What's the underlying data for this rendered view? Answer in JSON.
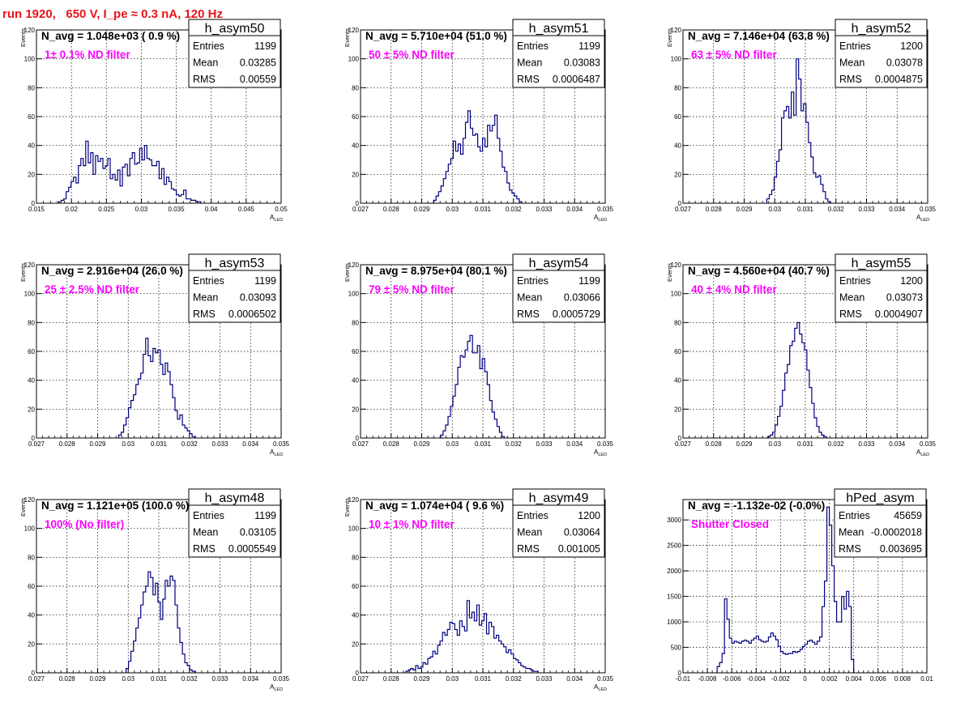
{
  "page": {
    "title": "run 1920,   650 V, I_pe ≈ 0.3 nA, 120 Hz"
  },
  "colors": {
    "title": "#e8141a",
    "annotation": "#ff00ff",
    "histogram": "#000080",
    "axis": "#000000",
    "grid": "#000000"
  },
  "chart_data": [
    {
      "type": "bar",
      "name": "h_asym50",
      "navg": "N_avg = 1.048e+03 ( 0.9 %)",
      "annotation": "1± 0.1% ND filter",
      "stats": {
        "entries": "1199",
        "mean": "0.03285",
        "rms": "0.00559"
      },
      "xlabel": "A_LED",
      "ylabel": "Events",
      "xlim": [
        0.015,
        0.05
      ],
      "ylim": [
        0,
        120
      ],
      "xticks": [
        "0.015",
        "0.02",
        "0.025",
        "0.03",
        "0.035",
        "0.04",
        "0.045",
        "0.05"
      ],
      "yticks": [
        "0",
        "20",
        "40",
        "60",
        "80",
        "100",
        "120"
      ],
      "bin_width": 0.00035,
      "values": [
        1,
        2,
        3,
        8,
        11,
        15,
        18,
        14,
        26,
        31,
        26,
        43,
        28,
        35,
        20,
        33,
        29,
        31,
        24,
        26,
        31,
        17,
        20,
        16,
        23,
        12,
        25,
        27,
        19,
        31,
        35,
        27,
        28,
        38,
        30,
        40,
        31,
        30,
        26,
        26,
        29,
        17,
        24,
        13,
        18,
        15,
        10,
        9,
        6,
        5,
        6,
        9,
        3,
        3,
        2,
        2,
        1,
        1
      ]
    },
    {
      "type": "bar",
      "name": "h_asym51",
      "navg": "N_avg = 5.710e+04 (51.0 %)",
      "annotation": "50 ± 5% ND filter",
      "stats": {
        "entries": "1199",
        "mean": "0.03083",
        "rms": "0.0006487"
      },
      "xlabel": "A_LED",
      "ylabel": "Events",
      "xlim": [
        0.027,
        0.035
      ],
      "ylim": [
        0,
        120
      ],
      "xticks": [
        "0.027",
        "0.028",
        "0.029",
        "0.03",
        "0.031",
        "0.032",
        "0.033",
        "0.034",
        "0.035"
      ],
      "yticks": [
        "0",
        "20",
        "40",
        "60",
        "80",
        "100",
        "120"
      ],
      "bin_width": 8e-05,
      "values": [
        2,
        5,
        8,
        12,
        17,
        22,
        27,
        31,
        43,
        36,
        41,
        34,
        45,
        56,
        64,
        52,
        47,
        48,
        39,
        36,
        45,
        39,
        54,
        50,
        54,
        61,
        45,
        36,
        25,
        22,
        14,
        9,
        7,
        5,
        3,
        1
      ]
    },
    {
      "type": "bar",
      "name": "h_asym52",
      "navg": "N_avg = 7.146e+04 (63.8 %)",
      "annotation": "63 ± 5% ND filter",
      "stats": {
        "entries": "1200",
        "mean": "0.03078",
        "rms": "0.0004875"
      },
      "xlabel": "A_LED",
      "ylabel": "Events",
      "xlim": [
        0.027,
        0.035
      ],
      "ylim": [
        0,
        120
      ],
      "xticks": [
        "0.027",
        "0.028",
        "0.029",
        "0.03",
        "0.031",
        "0.032",
        "0.033",
        "0.034",
        "0.035"
      ],
      "yticks": [
        "0",
        "20",
        "40",
        "60",
        "80",
        "100",
        "120"
      ],
      "bin_width": 8e-05,
      "values": [
        3,
        6,
        9,
        18,
        29,
        37,
        59,
        64,
        67,
        59,
        77,
        61,
        100,
        86,
        64,
        69,
        56,
        42,
        32,
        21,
        18,
        19,
        13,
        8,
        3,
        1
      ]
    },
    {
      "type": "bar",
      "name": "h_asym53",
      "navg": "N_avg = 2.916e+04 (26.0 %)",
      "annotation": "25 ± 2.5% ND filter",
      "stats": {
        "entries": "1199",
        "mean": "0.03093",
        "rms": "0.0006502"
      },
      "xlabel": "A_LED",
      "ylabel": "Events",
      "xlim": [
        0.027,
        0.035
      ],
      "ylim": [
        0,
        120
      ],
      "xticks": [
        "0.027",
        "0.028",
        "0.029",
        "0.03",
        "0.031",
        "0.032",
        "0.033",
        "0.034",
        "0.035"
      ],
      "yticks": [
        "0",
        "20",
        "40",
        "60",
        "80",
        "100",
        "120"
      ],
      "bin_width": 8e-05,
      "values": [
        2,
        4,
        9,
        14,
        21,
        26,
        30,
        37,
        41,
        45,
        58,
        69,
        57,
        53,
        62,
        59,
        61,
        51,
        44,
        52,
        46,
        37,
        28,
        19,
        13,
        16,
        9,
        7,
        5,
        3,
        1
      ]
    },
    {
      "type": "bar",
      "name": "h_asym54",
      "navg": "N_avg = 8.975e+04 (80.1 %)",
      "annotation": "79 ± 5% ND filter",
      "stats": {
        "entries": "1199",
        "mean": "0.03066",
        "rms": "0.0005729"
      },
      "xlabel": "A_LED",
      "ylabel": "Events",
      "xlim": [
        0.027,
        0.035
      ],
      "ylim": [
        0,
        120
      ],
      "xticks": [
        "0.027",
        "0.028",
        "0.029",
        "0.03",
        "0.031",
        "0.032",
        "0.033",
        "0.034",
        "0.035"
      ],
      "yticks": [
        "0",
        "20",
        "40",
        "60",
        "80",
        "100",
        "120"
      ],
      "bin_width": 8e-05,
      "values": [
        2,
        5,
        9,
        15,
        22,
        29,
        37,
        49,
        57,
        56,
        61,
        67,
        71,
        59,
        59,
        64,
        48,
        55,
        46,
        37,
        26,
        18,
        13,
        8,
        4,
        1
      ]
    },
    {
      "type": "bar",
      "name": "h_asym55",
      "navg": "N_avg = 4.560e+04 (40.7 %)",
      "annotation": "40 ± 4% ND filter",
      "stats": {
        "entries": "1200",
        "mean": "0.03073",
        "rms": "0.0004907"
      },
      "xlabel": "A_LED",
      "ylabel": "Events",
      "xlim": [
        0.027,
        0.035
      ],
      "ylim": [
        0,
        120
      ],
      "xticks": [
        "0.027",
        "0.028",
        "0.029",
        "0.03",
        "0.031",
        "0.032",
        "0.033",
        "0.034",
        "0.035"
      ],
      "yticks": [
        "0",
        "20",
        "40",
        "60",
        "80",
        "100",
        "120"
      ],
      "bin_width": 8e-05,
      "values": [
        1,
        2,
        4,
        9,
        15,
        22,
        33,
        45,
        51,
        64,
        67,
        76,
        80,
        72,
        66,
        61,
        47,
        35,
        24,
        14,
        8,
        4,
        2,
        1
      ]
    },
    {
      "type": "bar",
      "name": "h_asym48",
      "navg": "N_avg = 1.121e+05 (100.0 %)",
      "annotation": "100% (No filter)",
      "stats": {
        "entries": "1199",
        "mean": "0.03105",
        "rms": "0.0005549"
      },
      "xlabel": "A_LED",
      "ylabel": "Events",
      "xlim": [
        0.027,
        0.035
      ],
      "ylim": [
        0,
        120
      ],
      "xticks": [
        "0.027",
        "0.028",
        "0.029",
        "0.03",
        "0.031",
        "0.032",
        "0.033",
        "0.034",
        "0.035"
      ],
      "yticks": [
        "0",
        "20",
        "40",
        "60",
        "80",
        "100",
        "120"
      ],
      "bin_width": 8e-05,
      "values": [
        3,
        8,
        15,
        22,
        31,
        38,
        47,
        56,
        60,
        70,
        66,
        54,
        62,
        49,
        37,
        51,
        64,
        60,
        67,
        64,
        47,
        31,
        21,
        13,
        7,
        5,
        2,
        1
      ]
    },
    {
      "type": "bar",
      "name": "h_asym49",
      "navg": "N_avg = 1.074e+04 ( 9.6 %)",
      "annotation": "10 ± 1% ND filter",
      "stats": {
        "entries": "1200",
        "mean": "0.03064",
        "rms": "0.001005"
      },
      "xlabel": "A_LED",
      "ylabel": "Events",
      "xlim": [
        0.027,
        0.035
      ],
      "ylim": [
        0,
        120
      ],
      "xticks": [
        "0.027",
        "0.028",
        "0.029",
        "0.03",
        "0.031",
        "0.032",
        "0.033",
        "0.034",
        "0.035"
      ],
      "yticks": [
        "0",
        "20",
        "40",
        "60",
        "80",
        "100",
        "120"
      ],
      "bin_width": 8e-05,
      "values": [
        1,
        2,
        3,
        2,
        5,
        3,
        4,
        7,
        6,
        10,
        11,
        15,
        13,
        19,
        22,
        28,
        26,
        30,
        35,
        34,
        30,
        26,
        36,
        32,
        29,
        50,
        38,
        42,
        36,
        47,
        33,
        36,
        41,
        27,
        35,
        32,
        24,
        26,
        22,
        20,
        18,
        14,
        16,
        13,
        10,
        9,
        7,
        5,
        4,
        3,
        3,
        2,
        1,
        1
      ]
    },
    {
      "type": "bar",
      "name": "hPed_asym",
      "navg": "N_avg = -1.132e-02 (-0.0%)",
      "annotation": "Shutter Closed",
      "stats": {
        "entries": "45659",
        "mean": "-0.0002018",
        "rms": "0.003695"
      },
      "xlabel": "",
      "ylabel": "",
      "xlim": [
        -0.01,
        0.01
      ],
      "ylim": [
        0,
        3400
      ],
      "xticks": [
        "-0.01",
        "-0.008",
        "-0.006",
        "-0.004",
        "-0.002",
        "0",
        "0.002",
        "0.004",
        "0.006",
        "0.008",
        "0.01"
      ],
      "yticks": [
        "0",
        "500",
        "1000",
        "1500",
        "2000",
        "2500",
        "3000"
      ],
      "bin_width": 0.0002,
      "values": [
        120,
        200,
        380,
        1450,
        1050,
        680,
        580,
        620,
        600,
        580,
        620,
        640,
        620,
        580,
        640,
        680,
        720,
        650,
        620,
        600,
        620,
        700,
        780,
        720,
        650,
        520,
        420,
        380,
        360,
        380,
        380,
        420,
        400,
        420,
        460,
        520,
        560,
        620,
        640,
        600,
        560,
        620,
        700,
        1300,
        1800,
        3250,
        2900,
        2100,
        1400,
        1000,
        1000,
        1500,
        1250,
        1600,
        1300,
        260
      ]
    }
  ]
}
